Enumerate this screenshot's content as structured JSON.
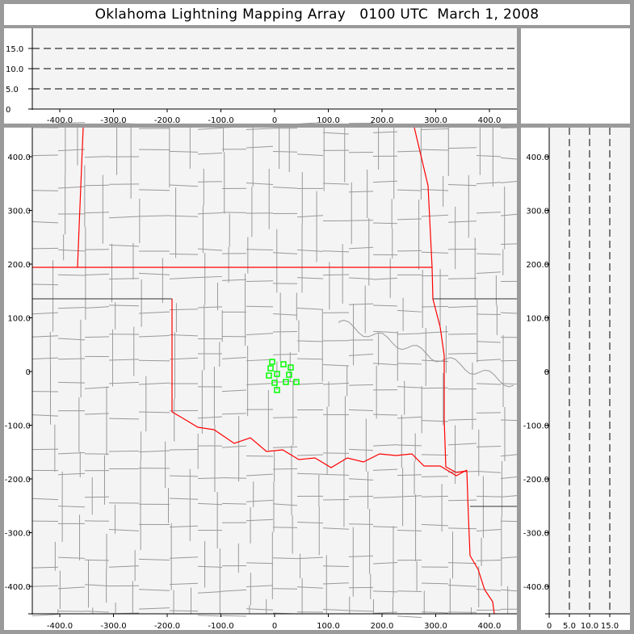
{
  "title": "Oklahoma Lightning Mapping Array   0100 UTC  March 1, 2008",
  "colors": {
    "frame": "#9a9a9a",
    "plot_bg": "#f4f4f4",
    "county": "#999999",
    "state_border": "#ff0000",
    "source": "#00ff00"
  },
  "chart_data": [
    {
      "type": "line",
      "panel": "altitude-vs-east-west",
      "xlim": [
        -450,
        450
      ],
      "ylim": [
        0,
        20
      ],
      "xticks": [
        "-400.0",
        "-300.0",
        "-200.0",
        "-100.0",
        "0",
        "100.0",
        "200.0",
        "300.0",
        "400.0"
      ],
      "xtick_values": [
        -400,
        -300,
        -200,
        -100,
        0,
        100,
        200,
        300,
        400
      ],
      "yticks": [
        "0",
        "5.0",
        "10.0",
        "15.0"
      ],
      "ytick_values": [
        0,
        5,
        10,
        15
      ],
      "reference_lines": {
        "style": "dashed",
        "y": [
          5,
          10,
          15
        ]
      },
      "points": []
    },
    {
      "type": "scatter",
      "panel": "plan-view-map",
      "xlim": [
        -450,
        450
      ],
      "ylim": [
        -450,
        450
      ],
      "xticks": [
        "-400.0",
        "-300.0",
        "-200.0",
        "-100.0",
        "0",
        "100.0",
        "200.0",
        "300.0",
        "400.0"
      ],
      "xtick_values": [
        -400,
        -300,
        -200,
        -100,
        0,
        100,
        200,
        300,
        400
      ],
      "yticks": [
        "400.0",
        "300.0",
        "200.0",
        "100.0",
        "0",
        "-100.0",
        "-200.0",
        "-300.0",
        "-400.0"
      ],
      "ytick_values": [
        400,
        300,
        200,
        100,
        0,
        -100,
        -200,
        -300,
        -400
      ],
      "marker": "open-square",
      "points": [
        [
          -4.5,
          18
        ],
        [
          16.5,
          13.5
        ],
        [
          30,
          7.5
        ],
        [
          -7.5,
          6
        ],
        [
          4.5,
          -4.5
        ],
        [
          -10.5,
          -7.5
        ],
        [
          27,
          -6
        ],
        [
          0,
          -21
        ],
        [
          21,
          -19.5
        ],
        [
          40.5,
          -19.5
        ],
        [
          4.5,
          -34.5
        ]
      ]
    },
    {
      "type": "line",
      "panel": "north-south-vs-altitude",
      "xlim": [
        0,
        20
      ],
      "ylim": [
        -450,
        450
      ],
      "xticks": [
        "0",
        "5.0",
        "10.0",
        "15.0"
      ],
      "xtick_values": [
        0,
        5,
        10,
        15
      ],
      "yticks": [
        "400.0",
        "300.0",
        "200.0",
        "100.0",
        "0",
        "-100.0",
        "-200.0",
        "-300.0",
        "-400.0"
      ],
      "ytick_values": [
        400,
        300,
        200,
        100,
        0,
        -100,
        -200,
        -300,
        -400
      ],
      "reference_lines": {
        "style": "dashed",
        "x": [
          5,
          10,
          15
        ]
      },
      "points": []
    }
  ]
}
